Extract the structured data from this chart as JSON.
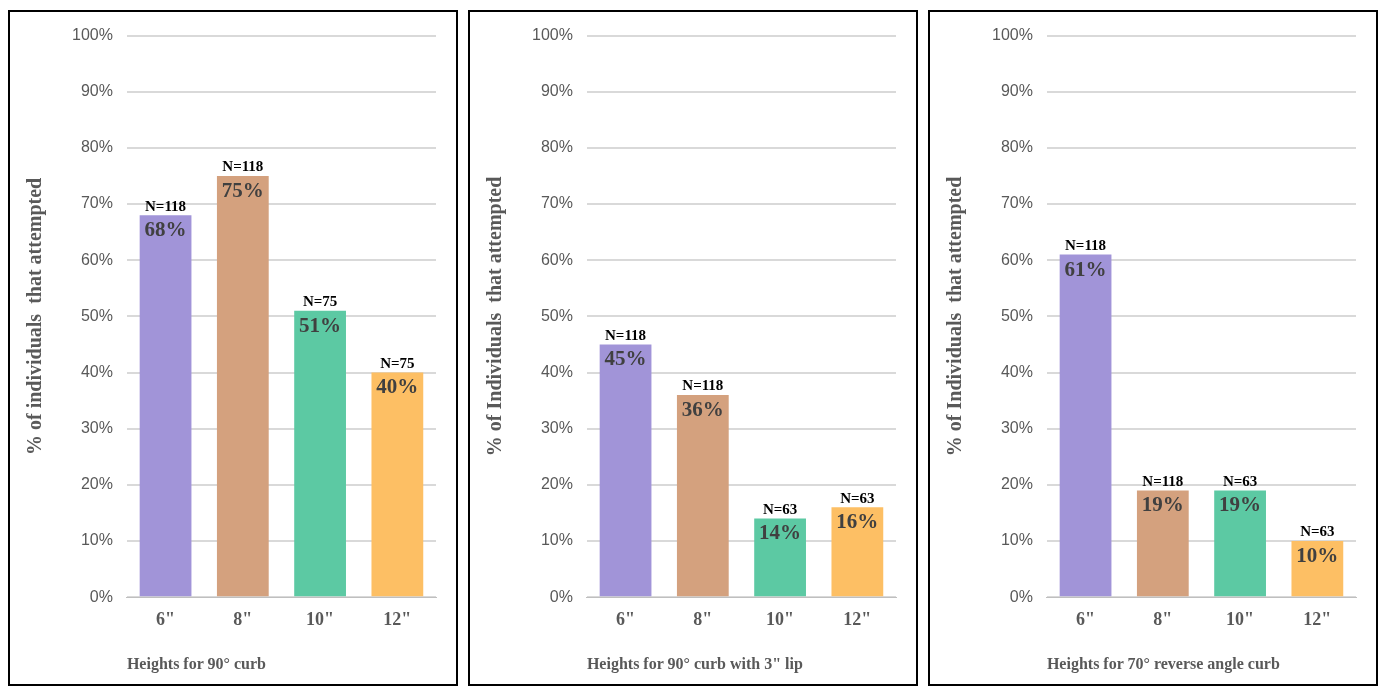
{
  "chart_data": [
    {
      "type": "bar",
      "xlabel": "Heights for 90° curb",
      "ylabel": "% of individuals  that attempted",
      "categories": [
        "6\"",
        "8\"",
        "10\"",
        "12\""
      ],
      "values": [
        68,
        75,
        51,
        40
      ],
      "colors": [
        "#a194d8",
        "#d4a17e",
        "#5cc9a3",
        "#fdbf64"
      ],
      "value_labels": [
        "68%",
        "75%",
        "51%",
        "40%"
      ],
      "annotations": [
        {
          "text": "N=118",
          "x": "6\"",
          "y": 68
        },
        {
          "text": "N=118",
          "x": "8\"",
          "y": 75
        },
        {
          "text": "N=75",
          "x": "10\"",
          "y": 51
        },
        {
          "text": "N=75",
          "x": "12\"",
          "y": 40
        }
      ],
      "ylim": [
        0,
        100
      ],
      "yticks": [
        {
          "value": 0,
          "label": "0%"
        },
        {
          "value": 10,
          "label": "10%"
        },
        {
          "value": 20,
          "label": "20%"
        },
        {
          "value": 30,
          "label": "30%"
        },
        {
          "value": 40,
          "label": "40%"
        },
        {
          "value": 50,
          "label": "50%"
        },
        {
          "value": 60,
          "label": "60%"
        },
        {
          "value": 70,
          "label": "70%"
        },
        {
          "value": 80,
          "label": "80%"
        },
        {
          "value": 90,
          "label": "90%"
        },
        {
          "value": 100,
          "label": "100%"
        }
      ],
      "grid": "y",
      "legend": false
    },
    {
      "type": "bar",
      "xlabel": "Heights for 90° curb with 3\" lip",
      "ylabel": "% of Individuals  that attempted",
      "categories": [
        "6\"",
        "8\"",
        "10\"",
        "12\""
      ],
      "values": [
        45,
        36,
        14,
        16
      ],
      "colors": [
        "#a194d8",
        "#d4a17e",
        "#5cc9a3",
        "#fdbf64"
      ],
      "value_labels": [
        "45%",
        "36%",
        "14%",
        "16%"
      ],
      "annotations": [
        {
          "text": "N=118",
          "x": "6\"",
          "y": 45
        },
        {
          "text": "N=118",
          "x": "8\"",
          "y": 36
        },
        {
          "text": "N=63",
          "x": "10\"",
          "y": 14
        },
        {
          "text": "N=63",
          "x": "12\"",
          "y": 16
        }
      ],
      "ylim": [
        0,
        100
      ],
      "yticks": [
        {
          "value": 0,
          "label": "0%"
        },
        {
          "value": 10,
          "label": "10%"
        },
        {
          "value": 20,
          "label": "20%"
        },
        {
          "value": 30,
          "label": "30%"
        },
        {
          "value": 40,
          "label": "40%"
        },
        {
          "value": 50,
          "label": "50%"
        },
        {
          "value": 60,
          "label": "60%"
        },
        {
          "value": 70,
          "label": "70%"
        },
        {
          "value": 80,
          "label": "80%"
        },
        {
          "value": 90,
          "label": "90%"
        },
        {
          "value": 100,
          "label": "100%"
        }
      ],
      "grid": "y",
      "legend": false
    },
    {
      "type": "bar",
      "xlabel": "Heights for 70° reverse angle curb",
      "ylabel": "% of Individuals  that attempted",
      "categories": [
        "6\"",
        "8\"",
        "10\"",
        "12\""
      ],
      "values": [
        61,
        19,
        19,
        10
      ],
      "colors": [
        "#a194d8",
        "#d4a17e",
        "#5cc9a3",
        "#fdbf64"
      ],
      "value_labels": [
        "61%",
        "19%",
        "19%",
        "10%"
      ],
      "annotations": [
        {
          "text": "N=118",
          "x": "6\"",
          "y": 61
        },
        {
          "text": "N=118",
          "x": "8\"",
          "y": 19
        },
        {
          "text": "N=63",
          "x": "10\"",
          "y": 19
        },
        {
          "text": "N=63",
          "x": "12\"",
          "y": 10
        }
      ],
      "ylim": [
        0,
        100
      ],
      "yticks": [
        {
          "value": 0,
          "label": "0%"
        },
        {
          "value": 10,
          "label": "10%"
        },
        {
          "value": 20,
          "label": "20%"
        },
        {
          "value": 30,
          "label": "30%"
        },
        {
          "value": 40,
          "label": "40%"
        },
        {
          "value": 50,
          "label": "50%"
        },
        {
          "value": 60,
          "label": "60%"
        },
        {
          "value": 70,
          "label": "70%"
        },
        {
          "value": 80,
          "label": "80%"
        },
        {
          "value": 90,
          "label": "90%"
        },
        {
          "value": 100,
          "label": "100%"
        }
      ],
      "grid": "y",
      "legend": false
    }
  ]
}
